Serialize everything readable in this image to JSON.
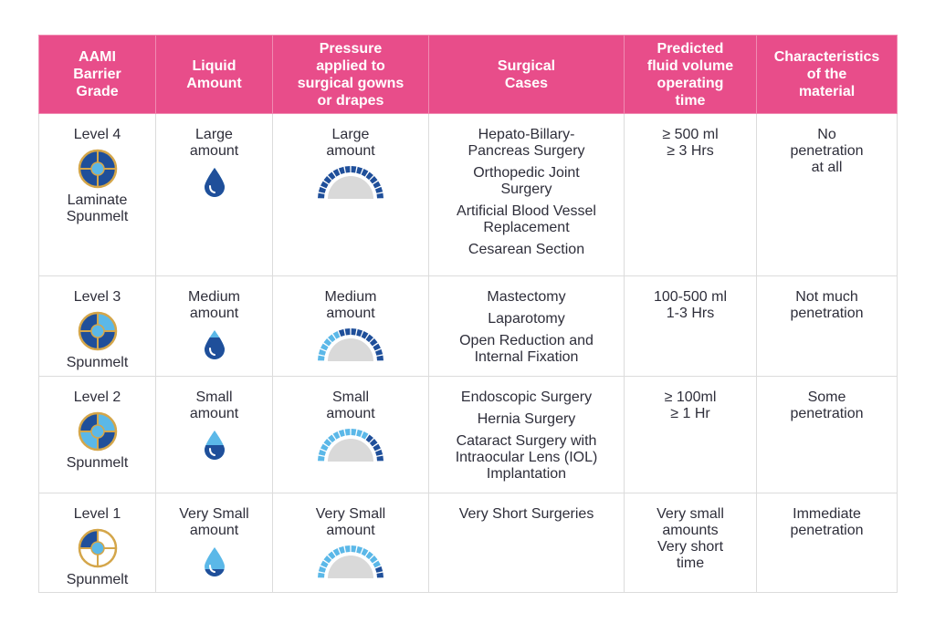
{
  "headers": [
    "AAMI\nBarrier\nGrade",
    "Liquid\nAmount",
    "Pressure\napplied to\nsurgical gowns\nor drapes",
    "Surgical\nCases",
    "Predicted\nfluid volume\noperating\ntime",
    "Characteristics\nof the\nmaterial"
  ],
  "rows": [
    {
      "level": "Level 4",
      "material": "Laminate\nSpunmelt",
      "liquid": "Large\namount",
      "pressure": "Large\namount",
      "pressure_fill": 1.0,
      "drop_fill": 1.0,
      "cases": [
        "Hepato-Billary-\nPancreas Surgery",
        "Orthopedic Joint\nSurgery",
        "Artificial Blood Vessel\nReplacement",
        "Cesarean Section"
      ],
      "volume": "≥ 500 ml\n≥ 3 Hrs",
      "characteristics": "No\npenetration\nat all"
    },
    {
      "level": "Level 3",
      "material": "Spunmelt",
      "liquid": "Medium\namount",
      "pressure": "Medium\namount",
      "pressure_fill": 0.6,
      "drop_fill": 0.75,
      "cases": [
        "Mastectomy",
        "Laparotomy",
        "Open Reduction and\nInternal Fixation"
      ],
      "volume": "100-500 ml\n1-3 Hrs",
      "characteristics": "Not much\npenetration"
    },
    {
      "level": "Level 2",
      "material": "Spunmelt",
      "liquid": "Small\namount",
      "pressure": "Small\namount",
      "pressure_fill": 0.3,
      "drop_fill": 0.5,
      "cases": [
        "Endoscopic Surgery",
        "Hernia Surgery",
        "Cataract Surgery with\nIntraocular Lens (IOL)\nImplantation"
      ],
      "volume": "≥ 100ml\n≥ 1 Hr",
      "characteristics": "Some\npenetration"
    },
    {
      "level": "Level 1",
      "material": "Spunmelt",
      "liquid": "Very Small\namount",
      "pressure": "Very Small\namount",
      "pressure_fill": 0.1,
      "drop_fill": 0.25,
      "cases": [
        "Very Short Surgeries"
      ],
      "volume": "Very small\namounts\nVery short\ntime",
      "characteristics": "Immediate\npenetration"
    }
  ],
  "colors": {
    "header_bg": "#e84d8a",
    "dark_blue": "#1f4f9a",
    "light_blue": "#5bb8e8",
    "gold": "#d4a64a",
    "gauge_grey": "#d9d9d9"
  }
}
